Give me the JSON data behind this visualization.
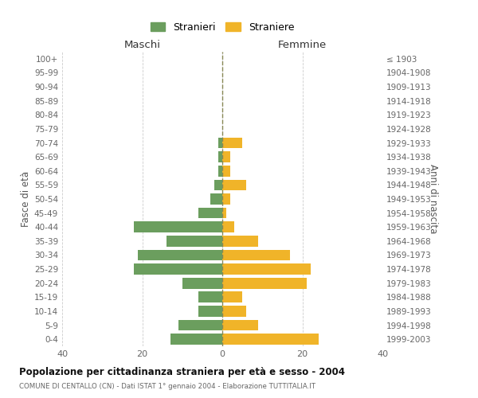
{
  "age_groups": [
    "0-4",
    "5-9",
    "10-14",
    "15-19",
    "20-24",
    "25-29",
    "30-34",
    "35-39",
    "40-44",
    "45-49",
    "50-54",
    "55-59",
    "60-64",
    "65-69",
    "70-74",
    "75-79",
    "80-84",
    "85-89",
    "90-94",
    "95-99",
    "100+"
  ],
  "birth_years": [
    "1999-2003",
    "1994-1998",
    "1989-1993",
    "1984-1988",
    "1979-1983",
    "1974-1978",
    "1969-1973",
    "1964-1968",
    "1959-1963",
    "1954-1958",
    "1949-1953",
    "1944-1948",
    "1939-1943",
    "1934-1938",
    "1929-1933",
    "1924-1928",
    "1919-1923",
    "1914-1918",
    "1909-1913",
    "1904-1908",
    "≤ 1903"
  ],
  "maschi": [
    13,
    11,
    6,
    6,
    10,
    22,
    21,
    14,
    22,
    6,
    3,
    2,
    1,
    1,
    1,
    0,
    0,
    0,
    0,
    0,
    0
  ],
  "femmine": [
    24,
    9,
    6,
    5,
    21,
    22,
    17,
    9,
    3,
    1,
    2,
    6,
    2,
    2,
    5,
    0,
    0,
    0,
    0,
    0,
    0
  ],
  "maschi_color": "#6b9e5e",
  "femmine_color": "#f0b429",
  "background_color": "#ffffff",
  "grid_color": "#cccccc",
  "title": "Popolazione per cittadinanza straniera per età e sesso - 2004",
  "subtitle": "COMUNE DI CENTALLO (CN) - Dati ISTAT 1° gennaio 2004 - Elaborazione TUTTITALIA.IT",
  "header_left": "Maschi",
  "header_right": "Femmine",
  "ylabel_left": "Fasce di età",
  "ylabel_right": "Anni di nascita",
  "legend_maschi": "Stranieri",
  "legend_femmine": "Straniere",
  "xlim": 40,
  "bar_height": 0.78
}
